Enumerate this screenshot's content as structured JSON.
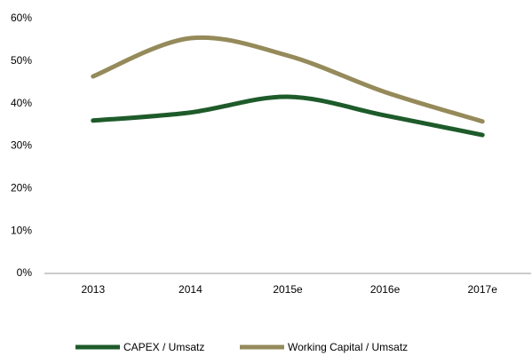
{
  "chart_data": {
    "type": "line",
    "categories": [
      "2013",
      "2014",
      "2015e",
      "2016e",
      "2017e"
    ],
    "series": [
      {
        "name": "CAPEX / Umsatz",
        "color": "#1e5b2a",
        "values": [
          36.0,
          37.9,
          41.6,
          37.2,
          32.6
        ]
      },
      {
        "name": "Working Capital / Umsatz",
        "color": "#958a5a",
        "values": [
          46.4,
          55.4,
          51.3,
          42.7,
          35.8
        ]
      }
    ],
    "ylim": [
      0,
      60
    ],
    "yticks": [
      {
        "value": 0,
        "label": "0%"
      },
      {
        "value": 10,
        "label": "10%"
      },
      {
        "value": 20,
        "label": "20%"
      },
      {
        "value": 30,
        "label": "30%"
      },
      {
        "value": 40,
        "label": "40%"
      },
      {
        "value": 50,
        "label": "50%"
      },
      {
        "value": 60,
        "label": "60%"
      }
    ],
    "grid": false,
    "legend": "bottom"
  }
}
